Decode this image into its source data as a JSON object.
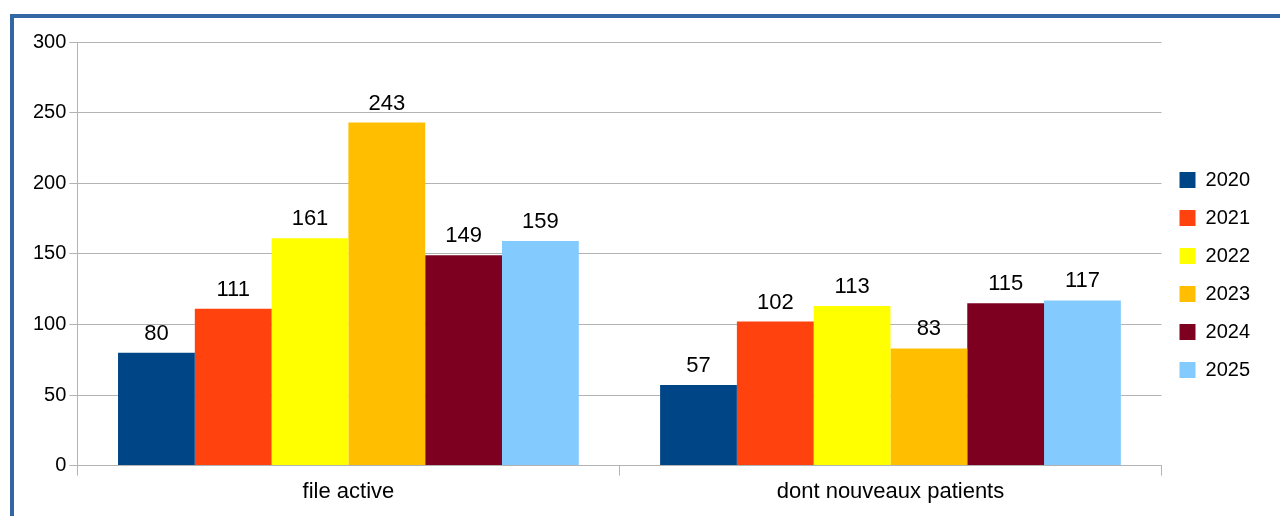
{
  "chart_data": {
    "type": "bar",
    "categories": [
      "file active",
      "dont nouveaux patients"
    ],
    "series": [
      {
        "name": "2020",
        "color": "#004586",
        "values": [
          80,
          57
        ]
      },
      {
        "name": "2021",
        "color": "#ff420e",
        "values": [
          111,
          102
        ]
      },
      {
        "name": "2022",
        "color": "#ffff00",
        "values": [
          161,
          113
        ]
      },
      {
        "name": "2023",
        "color": "#ffbf00",
        "values": [
          243,
          83
        ]
      },
      {
        "name": "2024",
        "color": "#7e0021",
        "values": [
          149,
          115
        ]
      },
      {
        "name": "2025",
        "color": "#83caff",
        "values": [
          159,
          117
        ]
      }
    ],
    "ylim": [
      0,
      300
    ],
    "yticks": [
      0,
      50,
      100,
      150,
      200,
      250,
      300
    ],
    "grid": "y",
    "legend": "right",
    "data_labels": true
  }
}
